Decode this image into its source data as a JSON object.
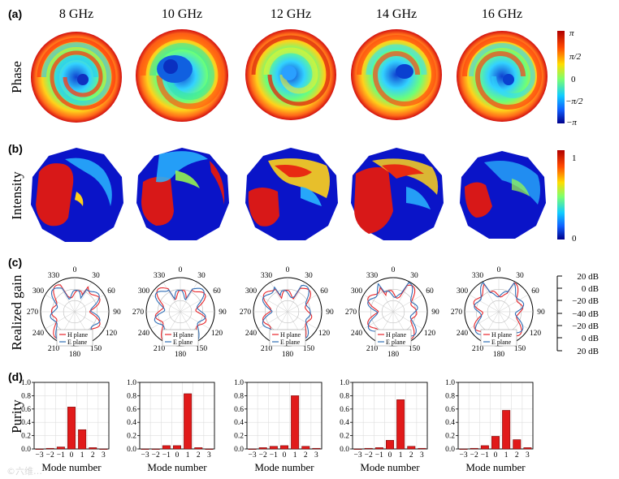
{
  "panels": {
    "a": "(a)",
    "b": "(b)",
    "c": "(c)",
    "d": "(d)"
  },
  "frequencies": [
    "8 GHz",
    "10 GHz",
    "12 GHz",
    "14 GHz",
    "16 GHz"
  ],
  "row_labels": {
    "phase": "Phase",
    "intensity": "Intensity",
    "gain": "Realized gain",
    "purity": "Purity"
  },
  "phase_colorbar": {
    "labels": [
      "π",
      "π/2",
      "0",
      "−π/2",
      "−π"
    ],
    "colors": [
      "#cc0000",
      "#ff6600",
      "#ffff00",
      "#33ff99",
      "#00aaff",
      "#0000aa"
    ]
  },
  "intensity_colorbar": {
    "labels": [
      "1",
      "0"
    ],
    "colors": [
      "#cc0000",
      "#ff6600",
      "#ffff00",
      "#33ff99",
      "#00aaff",
      "#0000aa"
    ]
  },
  "polar": {
    "angle_labels": [
      "0",
      "330",
      "300",
      "270",
      "240",
      "210",
      "180",
      "150",
      "120",
      "90",
      "60",
      "30"
    ],
    "legend": [
      "H plane",
      "E plane"
    ],
    "h_color": "#e8262b",
    "e_color": "#2f6db5",
    "scale_labels": [
      "20 dB",
      "0 dB",
      "−20 dB",
      "−40 dB",
      "−20 dB",
      "0 dB",
      "20 dB"
    ]
  },
  "chart_data": [
    {
      "type": "bar",
      "title": "8 GHz",
      "categories": [
        "−3",
        "−2",
        "−1",
        "0",
        "1",
        "2",
        "3"
      ],
      "values": [
        0.0,
        0.01,
        0.03,
        0.63,
        0.29,
        0.02,
        0.0
      ],
      "xlabel": "Mode number",
      "ylabel": "Purity",
      "yticks": [
        "0.0",
        "0.2",
        "0.4",
        "0.6",
        "0.8",
        "1.0"
      ],
      "ylim": [
        0,
        1.0
      ]
    },
    {
      "type": "bar",
      "title": "10 GHz",
      "categories": [
        "−3",
        "−2",
        "−1",
        "0",
        "1",
        "2",
        "3"
      ],
      "values": [
        0.0,
        0.0,
        0.05,
        0.05,
        0.83,
        0.02,
        0.0
      ],
      "xlabel": "Mode number",
      "ylabel": "",
      "yticks": [
        "0.0",
        "0.2",
        "0.4",
        "0.6",
        "0.8",
        "1.0"
      ],
      "ylim": [
        0,
        1.0
      ]
    },
    {
      "type": "bar",
      "title": "12 GHz",
      "categories": [
        "−3",
        "−2",
        "−1",
        "0",
        "1",
        "2",
        "3"
      ],
      "values": [
        0.0,
        0.02,
        0.04,
        0.05,
        0.8,
        0.04,
        0.01
      ],
      "xlabel": "Mode number",
      "ylabel": "",
      "yticks": [
        "0.0",
        "0.2",
        "0.4",
        "0.6",
        "0.8",
        "1.0"
      ],
      "ylim": [
        0,
        1.0
      ]
    },
    {
      "type": "bar",
      "title": "14 GHz",
      "categories": [
        "−3",
        "−2",
        "−1",
        "0",
        "1",
        "2",
        "3"
      ],
      "values": [
        0.0,
        0.01,
        0.02,
        0.13,
        0.74,
        0.04,
        0.01
      ],
      "xlabel": "Mode number",
      "ylabel": "",
      "yticks": [
        "0.0",
        "0.2",
        "0.4",
        "0.6",
        "0.8",
        "1.0"
      ],
      "ylim": [
        0,
        1.0
      ]
    },
    {
      "type": "bar",
      "title": "16 GHz",
      "categories": [
        "−3",
        "−2",
        "−1",
        "0",
        "1",
        "2",
        "3"
      ],
      "values": [
        0.0,
        0.01,
        0.05,
        0.19,
        0.58,
        0.14,
        0.02
      ],
      "xlabel": "Mode number",
      "ylabel": "",
      "yticks": [
        "0.0",
        "0.2",
        "0.4",
        "0.6",
        "0.8",
        "1.0"
      ],
      "ylim": [
        0,
        1.0
      ]
    }
  ],
  "bar_color": "#e11a1a",
  "watermark": "©六维…"
}
